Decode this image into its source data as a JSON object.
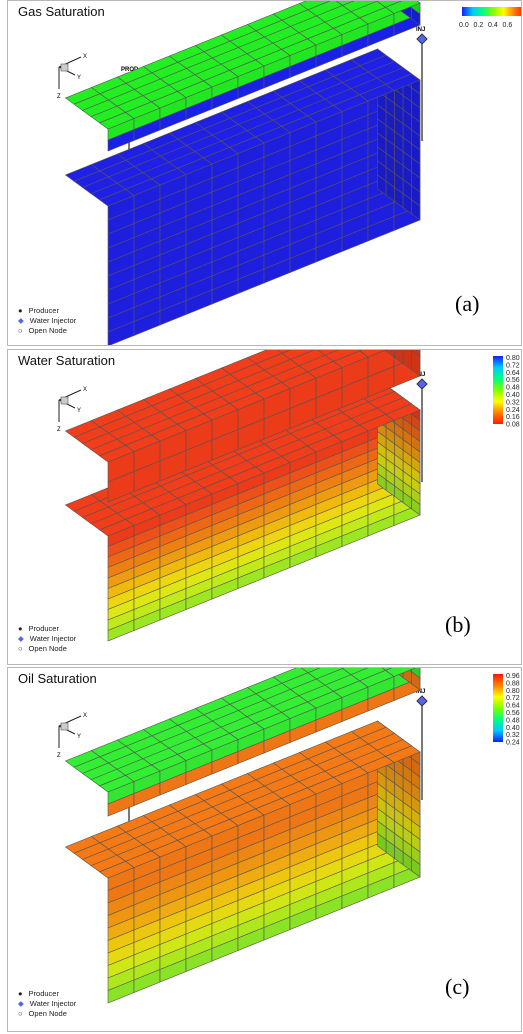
{
  "panels": [
    {
      "title": "Gas Saturation",
      "caption": "(a)",
      "scale": {
        "orientation": "horizontal",
        "ticks": [
          "0.0",
          "0.2",
          "0.4",
          "0.6"
        ]
      },
      "top_layer": "#22ee22",
      "top_side": "#1a22ee",
      "lower_layers": [
        "#1f1fe6",
        "#1f1fe6",
        "#1f1fe6",
        "#1f1fe6",
        "#1f1fe6",
        "#1f1fe6",
        "#1f1fe6",
        "#1f1fe6",
        "#1f1fe6",
        "#1f1fe6"
      ]
    },
    {
      "title": "Water Saturation",
      "caption": "(b)",
      "scale": {
        "orientation": "vertical",
        "ticks": [
          "0.80",
          "0.72",
          "0.64",
          "0.56",
          "0.48",
          "0.40",
          "0.32",
          "0.24",
          "0.16",
          "0.08"
        ],
        "gradient": [
          "#1020ff",
          "#00c8ff",
          "#00ff80",
          "#80ff00",
          "#ffff00",
          "#ff8000",
          "#ff1a00"
        ]
      },
      "top_layer": "#f23d1a",
      "top_side": "#f23d1a",
      "lower_layers": [
        "#f23d1a",
        "#f4521a",
        "#f46a16",
        "#f58412",
        "#f6a010",
        "#f7c00c",
        "#f4dd10",
        "#e6ee14",
        "#c8f01a",
        "#a2ee22"
      ]
    },
    {
      "title": "Oil Saturation",
      "caption": "(c)",
      "scale": {
        "orientation": "vertical",
        "ticks": [
          "0.96",
          "0.88",
          "0.80",
          "0.72",
          "0.64",
          "0.56",
          "0.48",
          "0.40",
          "0.32",
          "0.24"
        ],
        "gradient": [
          "#ff1a00",
          "#ff8000",
          "#ffff00",
          "#80ff00",
          "#00ff80",
          "#00c8ff",
          "#1020ff"
        ]
      },
      "top_layer": "#33ee33",
      "top_side": "#f57a16",
      "lower_layers": [
        "#f57a16",
        "#f57a16",
        "#f58a14",
        "#f59a12",
        "#f6b010",
        "#f5cc0e",
        "#eee012",
        "#d6ee16",
        "#b4ee1e",
        "#8eea26"
      ]
    }
  ],
  "axes": {
    "x": "X",
    "y": "Y",
    "z": "Z"
  },
  "wells": {
    "producer": "PROD",
    "injector": "INJ"
  },
  "legend": {
    "producer": "Producer",
    "injector": "Water Injector",
    "open_node": "Open Node"
  },
  "colors": {
    "producer": "#333333",
    "injector": "#5566ee",
    "grid_line": "#555555"
  }
}
